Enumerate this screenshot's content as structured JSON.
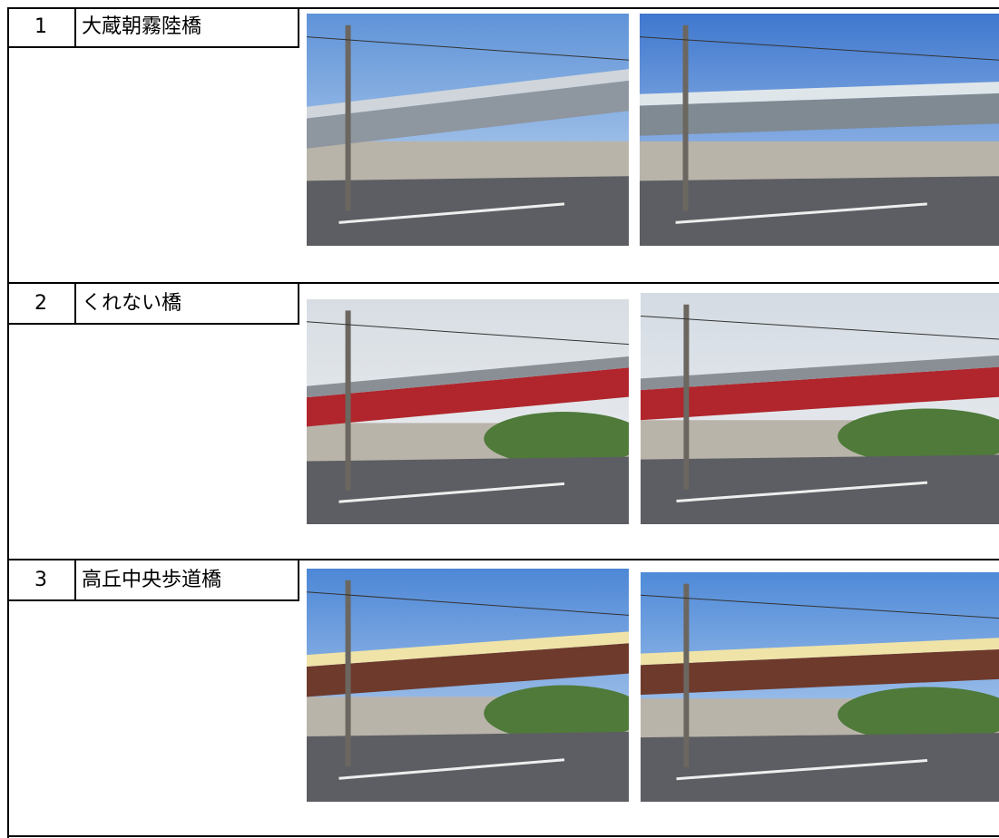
{
  "rows": [
    {
      "number": "1",
      "name": "大蔵朝霧陸橋"
    },
    {
      "number": "2",
      "name": "くれない橋"
    },
    {
      "number": "3",
      "name": "高丘中央歩道橋"
    }
  ]
}
